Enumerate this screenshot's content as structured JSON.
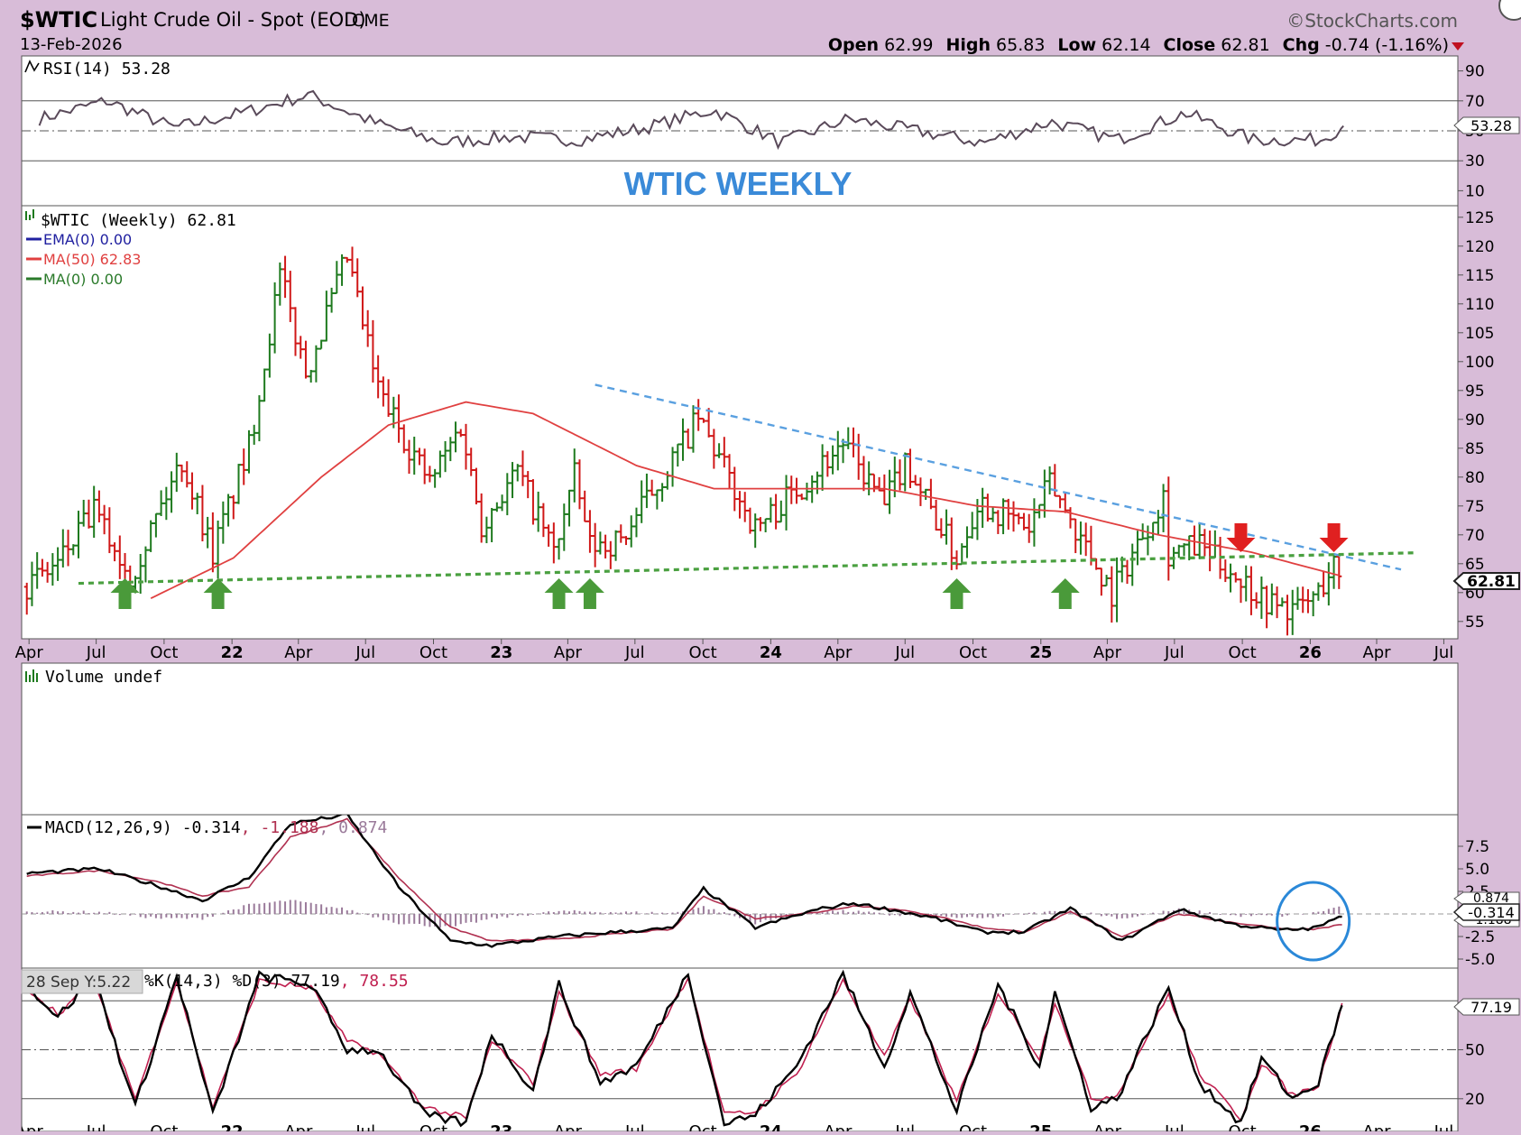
{
  "header": {
    "symbol": "$WTIC",
    "name": "Light Crude Oil - Spot (EOD)",
    "exchange": "CME",
    "date": "13-Feb-2026",
    "brand": "©StockCharts.com",
    "open_label": "Open",
    "open": "62.99",
    "high_label": "High",
    "high": "65.83",
    "low_label": "Low",
    "low": "62.14",
    "close_label": "Close",
    "close": "62.81",
    "chg_label": "Chg",
    "chg": "-0.74 (-1.16%)"
  },
  "colors": {
    "background": "#d8bcd8",
    "panel": "#ffffff",
    "up": "#1e7a1e",
    "down": "#d01818",
    "ma50": "#e04040",
    "trend": "#5aa0e0",
    "support": "#4aa040",
    "title": "#3a8ad8",
    "macd": "#000000",
    "signal": "#b03050",
    "histogram": "#9a7a9a"
  },
  "annotation_title": "WTIC WEEKLY",
  "crosshair_label": "28 Sep Y:5.22",
  "markers": {
    "green_up_arrows": [
      "2021-08-09",
      "2021-12-13",
      "2023-03-20",
      "2023-05-01",
      "2024-09-09",
      "2025-02-03"
    ],
    "red_down_arrows": [
      "2025-09-29",
      "2026-02-02"
    ],
    "circle_highlight": "2026-01-05"
  },
  "chart_data": [
    {
      "type": "line",
      "panel": "rsi",
      "label": "RSI(14) 53.28",
      "last_value_label": "53.28",
      "ylim": [
        0,
        100
      ],
      "y_ticks": [
        "90",
        "70",
        "50",
        "30",
        "10"
      ],
      "reference_lines": [
        70,
        50,
        30
      ],
      "x": [
        "2021-04",
        "2021-07",
        "2021-10",
        "2022-01",
        "2022-04",
        "2022-07",
        "2022-10",
        "2023-01",
        "2023-04",
        "2023-07",
        "2023-10",
        "2024-01",
        "2024-04",
        "2024-07",
        "2024-10",
        "2025-01",
        "2025-04",
        "2025-07",
        "2025-10",
        "2026-01",
        "2026-02"
      ],
      "values": [
        58,
        70,
        52,
        62,
        74,
        55,
        42,
        46,
        44,
        52,
        64,
        42,
        58,
        50,
        42,
        56,
        44,
        62,
        44,
        44,
        53.28
      ]
    },
    {
      "type": "candlestick",
      "panel": "price",
      "label": "$WTIC (Weekly) 62.81",
      "indicators": [
        {
          "name": "EMA(0) 0.00",
          "color": "#2020a0"
        },
        {
          "name": "MA(50) 62.83",
          "color": "#e04040"
        },
        {
          "name": "MA(0) 0.00",
          "color": "#2a7a2a"
        }
      ],
      "last_value_label": "62.81",
      "ylim": [
        52,
        127
      ],
      "y_ticks": [
        "125",
        "120",
        "115",
        "110",
        "105",
        "100",
        "95",
        "90",
        "85",
        "80",
        "75",
        "70",
        "65",
        "60",
        "55"
      ],
      "x_ticks": [
        "Apr",
        "Jul",
        "Oct",
        "22",
        "Apr",
        "Jul",
        "Oct",
        "23",
        "Apr",
        "Jul",
        "Oct",
        "24",
        "Apr",
        "Jul",
        "Oct",
        "25",
        "Apr",
        "Jul",
        "Oct",
        "26",
        "Apr",
        "Jul"
      ],
      "x_tick_dates": [
        "2021-04-01",
        "2021-07-01",
        "2021-10-01",
        "2022-01-01",
        "2022-04-01",
        "2022-07-01",
        "2022-10-01",
        "2023-01-01",
        "2023-04-01",
        "2023-07-01",
        "2023-10-01",
        "2024-01-01",
        "2024-04-01",
        "2024-07-01",
        "2024-10-01",
        "2025-01-01",
        "2025-04-01",
        "2025-07-01",
        "2025-10-01",
        "2026-01-01",
        "2026-04-01",
        "2026-07-01"
      ],
      "x_range": [
        "2021-03-22",
        "2026-07-20"
      ],
      "close_path": {
        "x": [
          "2021-03-29",
          "2021-05-10",
          "2021-06-28",
          "2021-08-16",
          "2021-10-25",
          "2021-12-06",
          "2022-01-24",
          "2022-03-07",
          "2022-04-11",
          "2022-06-06",
          "2022-07-18",
          "2022-09-26",
          "2022-11-07",
          "2022-12-05",
          "2023-01-23",
          "2023-03-13",
          "2023-04-10",
          "2023-05-01",
          "2023-06-12",
          "2023-09-25",
          "2023-12-11",
          "2024-01-29",
          "2024-04-08",
          "2024-06-03",
          "2024-07-01",
          "2024-09-09",
          "2024-10-07",
          "2024-12-16",
          "2025-01-13",
          "2025-03-03",
          "2025-04-07",
          "2025-06-16",
          "2025-06-23",
          "2025-08-04",
          "2025-09-22",
          "2025-11-10",
          "2025-12-15",
          "2026-01-12",
          "2026-02-02",
          "2026-02-13"
        ],
        "close": [
          61,
          65,
          74,
          63,
          83,
          67,
          85,
          115,
          98,
          118,
          95,
          79,
          89,
          72,
          81,
          67,
          80,
          68,
          69,
          90,
          71,
          77,
          86,
          75,
          83,
          66,
          76,
          71,
          79,
          68,
          60,
          77,
          67,
          68,
          63,
          58,
          57,
          60,
          65,
          62.81
        ]
      },
      "ma50": {
        "x": [
          "2021-09-13",
          "2022-01-03",
          "2022-05-02",
          "2022-08-01",
          "2022-11-14",
          "2023-02-13",
          "2023-07-03",
          "2023-10-16",
          "2024-02-05",
          "2024-06-03",
          "2024-10-07",
          "2025-02-03",
          "2025-06-09",
          "2025-10-13",
          "2026-02-13"
        ],
        "values": [
          59,
          66,
          80,
          89,
          93,
          91,
          82,
          78,
          78,
          78,
          75,
          74,
          70,
          67,
          62.83
        ]
      },
      "trend_lines": [
        {
          "name": "descending resistance",
          "from": [
            "2023-05-08",
            96
          ],
          "to": [
            "2026-05-04",
            64
          ]
        },
        {
          "name": "ascending support",
          "from": [
            "2021-06-07",
            61.6
          ],
          "to": [
            "2026-05-25",
            66.9
          ]
        }
      ]
    },
    {
      "type": "bar",
      "panel": "volume",
      "label": "Volume undef",
      "values": []
    },
    {
      "type": "line",
      "panel": "macd",
      "label": "MACD(12,26,9) -0.314",
      "signal_label": "-1.188",
      "histogram_label": "0.874",
      "last_value_labels": [
        "0.874",
        "-0.314",
        "-1.188"
      ],
      "ylim": [
        -6,
        11
      ],
      "y_ticks": [
        "7.5",
        "5.0",
        "2.5",
        "-2.5",
        "-5.0"
      ],
      "x": [
        "2021-03-29",
        "2021-07-05",
        "2021-09-27",
        "2021-11-22",
        "2022-01-24",
        "2022-03-21",
        "2022-06-06",
        "2022-08-15",
        "2022-10-24",
        "2022-12-19",
        "2023-03-20",
        "2023-06-05",
        "2023-08-21",
        "2023-10-02",
        "2023-12-11",
        "2024-03-04",
        "2024-04-22",
        "2024-06-10",
        "2024-08-12",
        "2024-10-14",
        "2024-12-09",
        "2025-02-10",
        "2025-04-21",
        "2025-07-07",
        "2025-09-22",
        "2025-11-24",
        "2026-01-05",
        "2026-02-13"
      ],
      "macd": [
        4.5,
        5,
        3,
        1.5,
        4,
        10,
        11,
        3,
        -3,
        -3.5,
        -2.5,
        -2,
        -1.6,
        2.8,
        -1.5,
        0.5,
        1.2,
        0.5,
        -0.5,
        -2,
        -2,
        0.6,
        -3,
        0.5,
        -1.2,
        -1.8,
        -1.6,
        -0.314
      ],
      "signal": [
        4.2,
        4.8,
        3.5,
        2,
        3,
        8.5,
        10.5,
        4,
        -1.5,
        -3,
        -2.8,
        -2.2,
        -1.7,
        2,
        -0.5,
        0.2,
        0.9,
        0.6,
        -0.2,
        -1.5,
        -2,
        0.2,
        -2.5,
        0,
        -1,
        -1.6,
        -1.7,
        -1.188
      ],
      "histogram": [
        0.3,
        0.2,
        -0.5,
        -0.5,
        1,
        1.5,
        0.5,
        -1,
        -1.5,
        -0.5,
        0.3,
        0.2,
        0.1,
        0.8,
        -1,
        0.3,
        0.3,
        -0.1,
        -0.3,
        -0.5,
        0,
        0.4,
        -0.5,
        0.5,
        -0.2,
        -0.2,
        0.1,
        0.874
      ]
    },
    {
      "type": "line",
      "panel": "stochastics",
      "label": "%K(14,3) %D(3) 77.19",
      "d_label": "78.55",
      "last_value_label": "77.19",
      "ylim": [
        0,
        100
      ],
      "y_ticks": [
        "50",
        "20"
      ],
      "reference_lines": [
        80,
        50,
        20
      ],
      "x": [
        "2021-03-29",
        "2021-05-10",
        "2021-06-28",
        "2021-08-23",
        "2021-10-18",
        "2021-12-06",
        "2022-02-07",
        "2022-04-18",
        "2022-06-06",
        "2022-07-18",
        "2022-09-19",
        "2022-11-14",
        "2022-12-19",
        "2023-02-13",
        "2023-03-20",
        "2023-05-15",
        "2023-07-03",
        "2023-09-11",
        "2023-10-30",
        "2023-12-11",
        "2024-02-05",
        "2024-04-08",
        "2024-06-03",
        "2024-07-08",
        "2024-09-09",
        "2024-11-04",
        "2024-12-30",
        "2025-01-20",
        "2025-03-10",
        "2025-04-14",
        "2025-06-23",
        "2025-08-04",
        "2025-09-29",
        "2025-10-27",
        "2025-12-08",
        "2026-01-12",
        "2026-02-13"
      ],
      "k": [
        90,
        70,
        95,
        15,
        95,
        10,
        95,
        90,
        50,
        50,
        10,
        5,
        60,
        25,
        90,
        30,
        40,
        97,
        5,
        10,
        40,
        96,
        40,
        85,
        12,
        90,
        40,
        85,
        15,
        20,
        88,
        30,
        5,
        45,
        20,
        30,
        77.19
      ],
      "d": [
        88,
        72,
        92,
        20,
        92,
        15,
        92,
        88,
        55,
        48,
        15,
        8,
        55,
        30,
        85,
        35,
        38,
        95,
        10,
        12,
        35,
        93,
        45,
        82,
        18,
        85,
        45,
        80,
        20,
        22,
        84,
        35,
        8,
        42,
        22,
        28,
        78.55
      ]
    }
  ]
}
